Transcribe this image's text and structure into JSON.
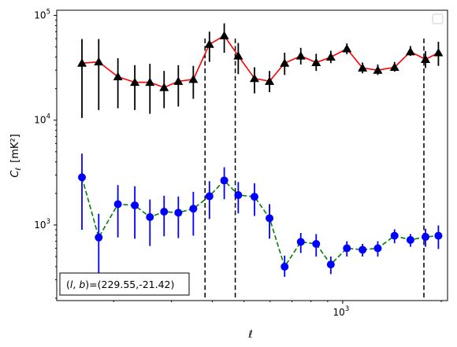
{
  "chart_data": {
    "type": "scatter",
    "title": "",
    "xlabel": "ℓ",
    "ylabel": "C",
    "ylabel_sub": "ℓ",
    "ylabel_unit": "[mK²]",
    "xscale": "log",
    "yscale": "log",
    "xlim": [
      134,
      2090
    ],
    "ylim": [
      190,
      112000
    ],
    "legend_placement": "upper right (empty)",
    "grid": false,
    "x_major_ticks": [
      {
        "value": 1000,
        "base": "10",
        "exp": "3"
      }
    ],
    "y_major_ticks": [
      {
        "value": 1000,
        "base": "10",
        "exp": "3"
      },
      {
        "value": 10000,
        "base": "10",
        "exp": "4"
      },
      {
        "value": 100000,
        "base": "10",
        "exp": "5"
      }
    ],
    "vertical_lines_x": [
      380,
      470,
      1770
    ],
    "annotation": {
      "text": "(l, b)=(229.55,-21.42)",
      "prefix": "(",
      "l": "l",
      "comma": ", ",
      "b": "b",
      "suffix": ")=(229.55,-21.42)"
    },
    "series": [
      {
        "marker": "triangle",
        "marker_color": "#000000",
        "line_color": "#ff0000",
        "line_style": "solid",
        "errorbar_color": "#000000",
        "x": [
          160,
          180,
          206,
          232,
          258,
          285,
          315,
          350,
          392,
          435,
          480,
          538,
          598,
          665,
          745,
          830,
          920,
          1030,
          1150,
          1280,
          1440,
          1610,
          1790,
          1960
        ],
        "y": [
          35000,
          36000,
          26000,
          23000,
          23000,
          20500,
          23500,
          24500,
          53000,
          64000,
          41000,
          25000,
          23500,
          35000,
          41000,
          35500,
          40000,
          48000,
          31500,
          30000,
          32000,
          45000,
          38000,
          44000
        ],
        "yerr_lo": [
          24500,
          23500,
          13000,
          10500,
          11500,
          7500,
          10000,
          8500,
          17000,
          20000,
          13500,
          7000,
          5000,
          8000,
          7000,
          6000,
          5000,
          5500,
          3500,
          3000,
          3000,
          4000,
          6500,
          11000
        ],
        "yerr_hi": [
          24500,
          23500,
          13000,
          10500,
          11500,
          9000,
          10000,
          8500,
          17000,
          20000,
          13500,
          7000,
          6000,
          9000,
          8000,
          7500,
          6000,
          6000,
          4000,
          4000,
          4000,
          6000,
          7500,
          12000
        ]
      },
      {
        "marker": "circle",
        "marker_color": "#0000ff",
        "line_color": "#008000",
        "line_style": "dashed",
        "errorbar_color": "#0000ff",
        "x": [
          160,
          180,
          206,
          232,
          258,
          285,
          315,
          350,
          392,
          435,
          480,
          538,
          598,
          665,
          745,
          830,
          920,
          1030,
          1150,
          1280,
          1440,
          1610,
          1790,
          1960
        ],
        "y": [
          2850,
          760,
          1580,
          1540,
          1190,
          1340,
          1310,
          1430,
          1880,
          2660,
          1930,
          1860,
          1160,
          400,
          690,
          660,
          420,
          600,
          580,
          600,
          790,
          720,
          770,
          790
        ],
        "yerr_lo": [
          1950,
          420,
          820,
          800,
          560,
          560,
          560,
          640,
          740,
          900,
          640,
          640,
          420,
          80,
          150,
          160,
          80,
          100,
          80,
          100,
          120,
          100,
          150,
          200
        ],
        "yerr_hi": [
          1950,
          520,
          820,
          800,
          560,
          560,
          560,
          640,
          740,
          900,
          640,
          640,
          420,
          110,
          150,
          160,
          80,
          100,
          80,
          100,
          120,
          100,
          150,
          200
        ]
      }
    ]
  }
}
